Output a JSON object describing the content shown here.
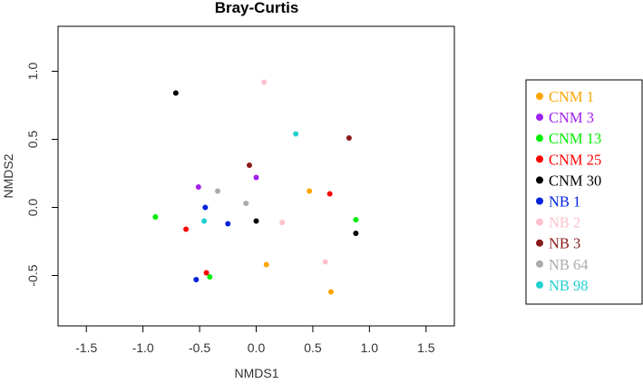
{
  "chart_data": {
    "type": "scatter",
    "title": "Bray-Curtis",
    "xlabel": "NMDS1",
    "ylabel": "NMDS2",
    "xlim": [
      -1.75,
      1.75
    ],
    "ylim": [
      -0.87,
      1.33
    ],
    "xticks": [
      -1.5,
      -1.0,
      -0.5,
      0.0,
      0.5,
      1.0,
      1.5
    ],
    "xtick_labels": [
      "-1.5",
      "-1.0",
      "-0.5",
      "0.0",
      "0.5",
      "1.0",
      "1.5"
    ],
    "yticks": [
      -0.5,
      0.0,
      0.5,
      1.0
    ],
    "ytick_labels": [
      "-0.5",
      "0.0",
      "0.5",
      "1.0"
    ],
    "grid": false,
    "legend_position": "right",
    "series": [
      {
        "name": "CNM 1",
        "color": "#FFA500",
        "points": [
          [
            0.47,
            0.12
          ],
          [
            0.09,
            -0.42
          ],
          [
            0.66,
            -0.62
          ]
        ]
      },
      {
        "name": "CNM 3",
        "color": "#A020F0",
        "points": [
          [
            -0.51,
            0.15
          ],
          [
            0.0,
            0.22
          ]
        ]
      },
      {
        "name": "CNM 13",
        "color": "#00EE00",
        "points": [
          [
            -0.89,
            -0.07
          ],
          [
            -0.41,
            -0.51
          ],
          [
            0.88,
            -0.09
          ]
        ]
      },
      {
        "name": "CNM 25",
        "color": "#FF0000",
        "points": [
          [
            -0.62,
            -0.16
          ],
          [
            -0.44,
            -0.48
          ],
          [
            0.65,
            0.1
          ]
        ]
      },
      {
        "name": "CNM 30",
        "color": "#000000",
        "points": [
          [
            -0.71,
            0.84
          ],
          [
            0.0,
            -0.1
          ],
          [
            0.88,
            -0.19
          ]
        ]
      },
      {
        "name": "NB 1",
        "color": "#0022DD",
        "points": [
          [
            -0.45,
            0.0
          ],
          [
            -0.25,
            -0.12
          ],
          [
            -0.53,
            -0.53
          ]
        ]
      },
      {
        "name": "NB 2",
        "color": "#FFC0CB",
        "points": [
          [
            0.07,
            0.92
          ],
          [
            0.23,
            -0.11
          ],
          [
            0.61,
            -0.4
          ]
        ]
      },
      {
        "name": "NB 3",
        "color": "#8B1A1A",
        "points": [
          [
            -0.06,
            0.31
          ],
          [
            0.82,
            0.51
          ]
        ]
      },
      {
        "name": "NB 64",
        "color": "#AAAAAA",
        "points": [
          [
            -0.34,
            0.12
          ],
          [
            -0.09,
            0.03
          ]
        ]
      },
      {
        "name": "NB 98",
        "color": "#20D0D0",
        "points": [
          [
            -0.46,
            -0.1
          ],
          [
            0.35,
            0.54
          ]
        ]
      }
    ]
  }
}
